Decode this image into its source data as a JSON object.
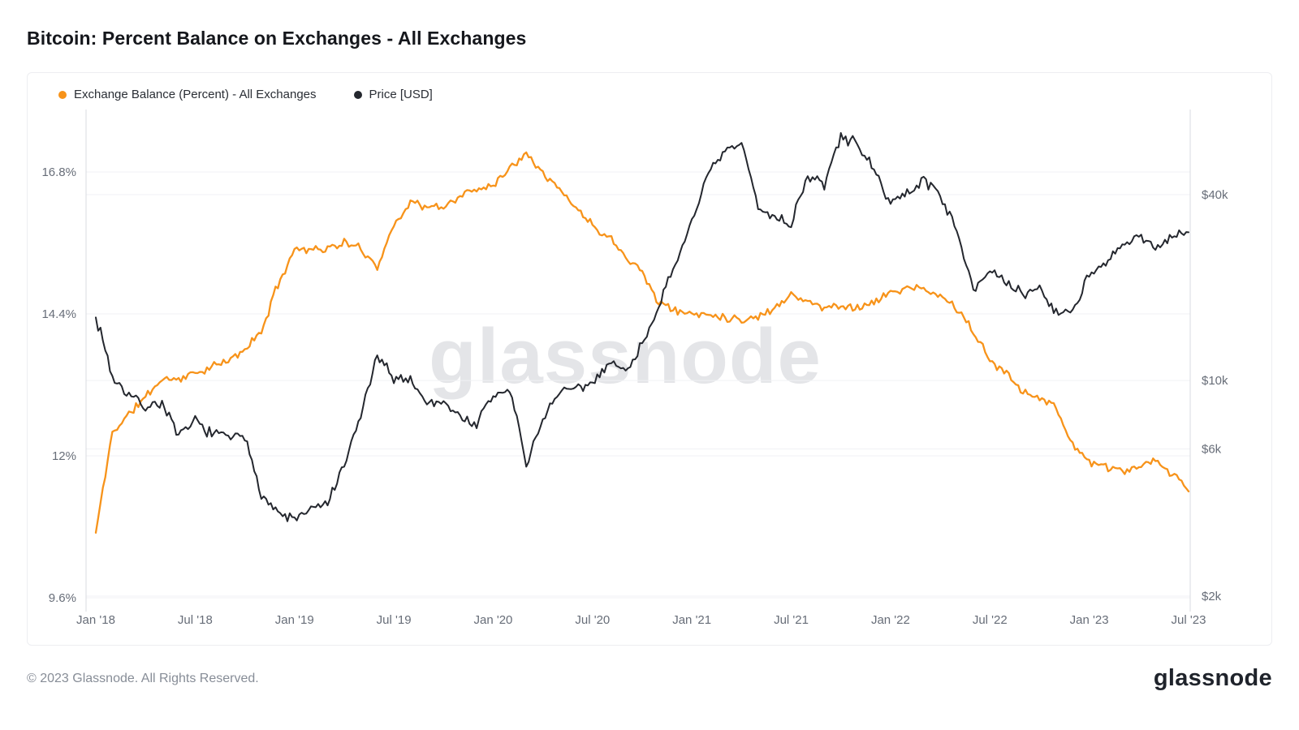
{
  "page": {
    "title": "Bitcoin: Percent Balance on Exchanges - All Exchanges",
    "watermark": "glassnode",
    "footer_copyright": "© 2023 Glassnode. All Rights Reserved.",
    "footer_logo": "glassnode"
  },
  "legend": [
    {
      "label": "Exchange Balance (Percent) - All Exchanges",
      "color": "#f7931a"
    },
    {
      "label": "Price [USD]",
      "color": "#24272e"
    }
  ],
  "chart_data": {
    "type": "line",
    "title": "Bitcoin: Percent Balance on Exchanges - All Exchanges",
    "x_tick_labels": [
      "Jan '18",
      "Jul '18",
      "Jan '19",
      "Jul '19",
      "Jan '20",
      "Jul '20",
      "Jan '21",
      "Jul '21",
      "Jan '22",
      "Jul '22",
      "Jan '23",
      "Jul '23"
    ],
    "x_tick_month_index": [
      0,
      6,
      12,
      18,
      24,
      30,
      36,
      42,
      48,
      54,
      60,
      66
    ],
    "x_start_month": "Jan 2018",
    "x_end_month": "Jul 2023",
    "grid": true,
    "legend_position": "top-left",
    "left_axis": {
      "scale": "linear",
      "ticks": [
        9.6,
        12,
        14.4,
        16.8
      ],
      "tick_labels": [
        "9.6%",
        "12%",
        "14.4%",
        "16.8%"
      ],
      "range": [
        9.3,
        17.6
      ]
    },
    "right_axis": {
      "scale": "log",
      "ticks": [
        2000,
        6000,
        10000,
        40000
      ],
      "tick_labels": [
        "$2k",
        "$6k",
        "$10k",
        "$40k"
      ],
      "range": [
        1800,
        70000
      ]
    },
    "series": [
      {
        "name": "Exchange Balance (Percent) - All Exchanges",
        "axis": "left",
        "color": "#f7931a",
        "unit": "%",
        "values": [
          10.7,
          12.4,
          12.7,
          13.0,
          13.3,
          13.3,
          13.4,
          13.5,
          13.6,
          13.8,
          14.1,
          14.9,
          15.5,
          15.5,
          15.5,
          15.6,
          15.5,
          15.2,
          15.9,
          16.3,
          16.2,
          16.2,
          16.4,
          16.5,
          16.6,
          16.85,
          17.15,
          16.8,
          16.5,
          16.2,
          15.9,
          15.7,
          15.4,
          15.1,
          14.6,
          14.45,
          14.4,
          14.4,
          14.35,
          14.3,
          14.35,
          14.5,
          14.75,
          14.6,
          14.5,
          14.55,
          14.5,
          14.6,
          14.75,
          14.85,
          14.8,
          14.7,
          14.5,
          14.1,
          13.6,
          13.4,
          13.1,
          13.0,
          12.8,
          12.2,
          11.9,
          11.8,
          11.75,
          11.8,
          11.9,
          11.7,
          11.4
        ]
      },
      {
        "name": "Price [USD]",
        "axis": "right",
        "color": "#24272e",
        "unit": "USD",
        "values": [
          16000,
          10200,
          9000,
          8200,
          8500,
          6500,
          7400,
          6700,
          6600,
          6450,
          4300,
          3700,
          3550,
          3800,
          4000,
          5200,
          7600,
          11800,
          10200,
          10100,
          8400,
          8600,
          7600,
          7200,
          8900,
          9300,
          5200,
          7500,
          9200,
          9300,
          9800,
          11500,
          10700,
          13000,
          17500,
          23000,
          33000,
          46000,
          55000,
          58000,
          36000,
          34000,
          32000,
          46000,
          43000,
          61000,
          59000,
          47000,
          38000,
          40000,
          45000,
          40000,
          30000,
          20000,
          22500,
          20500,
          19000,
          20000,
          16500,
          16800,
          22000,
          23500,
          27500,
          29000,
          27000,
          29500,
          30200
        ]
      }
    ]
  }
}
